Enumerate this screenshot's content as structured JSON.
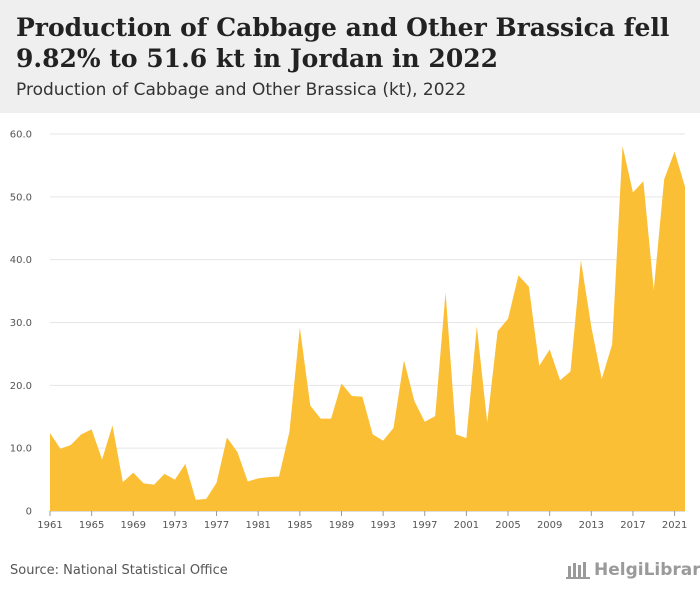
{
  "title": "Production of Cabbage and Other Brassica fell 9.82% to 51.6 kt in Jordan in 2022",
  "subtitle": "Production of Cabbage and Other Brassica (kt), 2022",
  "source": "Source: National Statistical Office",
  "logo_text": "HelgiLibrary",
  "colors": {
    "area": "#FBBF35",
    "header_bg": "#efefef",
    "grid": "#e6e6e6"
  },
  "chart_data": {
    "type": "area",
    "title": "",
    "xlabel": "",
    "ylabel": "",
    "ylim": [
      0,
      60
    ],
    "yticks": [
      0,
      10.0,
      20.0,
      30.0,
      40.0,
      50.0,
      60.0
    ],
    "ytick_labels": [
      "0",
      "10.0",
      "20.0",
      "30.0",
      "40.0",
      "50.0",
      "60.0"
    ],
    "xticks": [
      1961,
      1965,
      1969,
      1973,
      1977,
      1981,
      1985,
      1989,
      1993,
      1997,
      2001,
      2005,
      2009,
      2013,
      2017,
      2021
    ],
    "grid": true,
    "x": [
      1961,
      1962,
      1963,
      1964,
      1965,
      1966,
      1967,
      1968,
      1969,
      1970,
      1971,
      1972,
      1973,
      1974,
      1975,
      1976,
      1977,
      1978,
      1979,
      1980,
      1981,
      1982,
      1983,
      1984,
      1985,
      1986,
      1987,
      1988,
      1989,
      1990,
      1991,
      1992,
      1993,
      1994,
      1995,
      1996,
      1997,
      1998,
      1999,
      2000,
      2001,
      2002,
      2003,
      2004,
      2005,
      2006,
      2007,
      2008,
      2009,
      2010,
      2011,
      2012,
      2013,
      2014,
      2015,
      2016,
      2017,
      2018,
      2019,
      2020,
      2021,
      2022
    ],
    "values": [
      12.4,
      9.9,
      10.5,
      12.2,
      13.0,
      8.2,
      13.6,
      4.6,
      6.1,
      4.4,
      4.2,
      5.9,
      5.0,
      7.5,
      1.8,
      1.9,
      4.5,
      11.7,
      9.4,
      4.7,
      5.2,
      5.4,
      5.5,
      12.6,
      29.2,
      16.8,
      14.7,
      14.7,
      20.3,
      18.3,
      18.2,
      12.2,
      11.2,
      13.2,
      24.0,
      17.5,
      14.2,
      15.1,
      34.8,
      12.2,
      11.6,
      29.4,
      14.1,
      28.6,
      30.6,
      37.5,
      35.7,
      23.1,
      25.7,
      20.8,
      22.2,
      39.9,
      29.3,
      21.0,
      26.5,
      58.1,
      50.7,
      52.5,
      35.2,
      52.8,
      57.2,
      51.6
    ]
  }
}
